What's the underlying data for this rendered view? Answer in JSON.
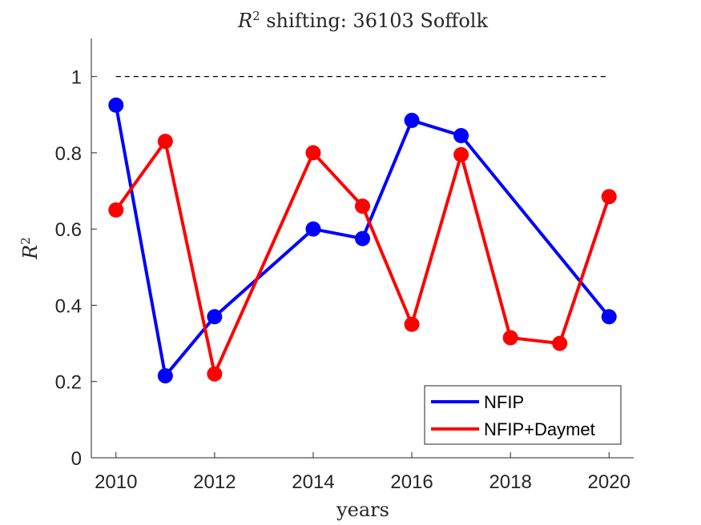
{
  "chart_data": {
    "type": "line",
    "title_prefix": "R",
    "title_sup": "2",
    "title_rest": " shifting: 36103 Soffolk",
    "xlabel": "years",
    "ylabel": "R",
    "ylabel_sup": "2",
    "xlim": [
      2009.5,
      2020.5
    ],
    "ylim": [
      0,
      1.1
    ],
    "xticks": [
      2010,
      2012,
      2014,
      2016,
      2018,
      2020
    ],
    "yticks": [
      0,
      0.2,
      0.4,
      0.6,
      0.8,
      1
    ],
    "xtick_labels": [
      "2010",
      "2012",
      "2014",
      "2016",
      "2018",
      "2020"
    ],
    "ytick_labels": [
      "0",
      "0.2",
      "0.4",
      "0.6",
      "0.8",
      "1"
    ],
    "reference_line": {
      "y": 1,
      "x": [
        2010,
        2020
      ],
      "style": "dashed",
      "color": "#000000"
    },
    "grid": false,
    "legend_position": "bottom-right",
    "series": [
      {
        "name": "NFIP",
        "color": "#0000ff",
        "x": [
          2010,
          2011,
          2012,
          2014,
          2015,
          2016,
          2017,
          2020
        ],
        "y": [
          0.925,
          0.215,
          0.37,
          0.6,
          0.575,
          0.885,
          0.845,
          0.37
        ]
      },
      {
        "name": "NFIP+Daymet",
        "color": "#ff0000",
        "x": [
          2010,
          2011,
          2012,
          2014,
          2015,
          2016,
          2017,
          2018,
          2019,
          2020
        ],
        "y": [
          0.65,
          0.83,
          0.22,
          0.8,
          0.66,
          0.35,
          0.795,
          0.315,
          0.3,
          0.685
        ]
      }
    ]
  }
}
